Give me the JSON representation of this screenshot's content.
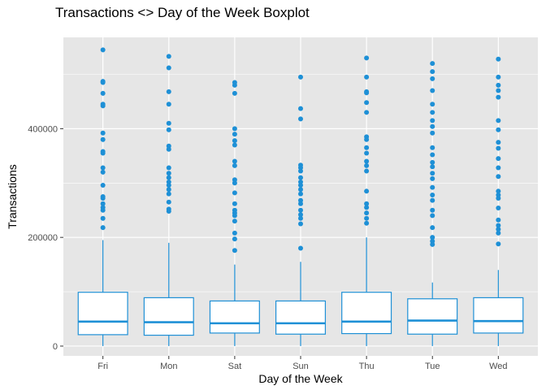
{
  "chart_data": {
    "type": "boxplot",
    "title": "Transactions <> Day of the Week Boxplot",
    "xlabel": "Day of the Week",
    "ylabel": "Transactions",
    "ylim": [
      -18000,
      568000
    ],
    "yticks": [
      0,
      200000,
      400000
    ],
    "ytick_labels": [
      "0",
      "200000",
      "400000"
    ],
    "grid": true,
    "colors": {
      "box": "#1e90d6",
      "panel": "#e6e6e6",
      "grid": "#ffffff",
      "point": "#1e90d6"
    },
    "categories": [
      "Fri",
      "Mon",
      "Sat",
      "Sun",
      "Thu",
      "Tue",
      "Wed"
    ],
    "boxes": [
      {
        "min": 0,
        "q1": 21000,
        "median": 45000,
        "q3": 99000,
        "max": 195000,
        "outliers": [
          545000,
          487000,
          485000,
          465000,
          445000,
          442000,
          392000,
          380000,
          358000,
          355000,
          328000,
          320000,
          296000,
          275000,
          272000,
          262000,
          255000,
          250000,
          235000,
          218000
        ]
      },
      {
        "min": 0,
        "q1": 20000,
        "median": 44000,
        "q3": 89000,
        "max": 190000,
        "outliers": [
          533000,
          512000,
          468000,
          445000,
          410000,
          398000,
          368000,
          362000,
          328000,
          318000,
          310000,
          302000,
          296000,
          288000,
          280000,
          265000,
          252000,
          248000
        ]
      },
      {
        "min": 0,
        "q1": 24000,
        "median": 42000,
        "q3": 83000,
        "max": 150000,
        "outliers": [
          485000,
          480000,
          465000,
          400000,
          390000,
          378000,
          370000,
          340000,
          332000,
          306000,
          300000,
          282000,
          262000,
          250000,
          245000,
          240000,
          230000,
          208000,
          197000,
          176000
        ]
      },
      {
        "min": 0,
        "q1": 22000,
        "median": 42000,
        "q3": 83000,
        "max": 155000,
        "outliers": [
          495000,
          437000,
          418000,
          333000,
          328000,
          322000,
          310000,
          302000,
          296000,
          288000,
          280000,
          268000,
          262000,
          250000,
          242000,
          235000,
          225000,
          180000
        ]
      },
      {
        "min": 0,
        "q1": 23000,
        "median": 45000,
        "q3": 99000,
        "max": 200000,
        "outliers": [
          530000,
          495000,
          468000,
          466000,
          448000,
          430000,
          385000,
          380000,
          365000,
          355000,
          340000,
          332000,
          322000,
          285000,
          262000,
          255000,
          245000,
          235000,
          226000
        ]
      },
      {
        "min": 0,
        "q1": 22000,
        "median": 47000,
        "q3": 87000,
        "max": 117000,
        "outliers": [
          520000,
          505000,
          492000,
          470000,
          445000,
          430000,
          415000,
          404000,
          392000,
          365000,
          352000,
          338000,
          330000,
          318000,
          308000,
          292000,
          278000,
          268000,
          250000,
          240000,
          218000,
          200000,
          193000,
          187000
        ]
      },
      {
        "min": 0,
        "q1": 24000,
        "median": 46000,
        "q3": 89000,
        "max": 140000,
        "outliers": [
          528000,
          495000,
          480000,
          470000,
          458000,
          415000,
          398000,
          375000,
          364000,
          345000,
          328000,
          312000,
          285000,
          278000,
          272000,
          254000,
          232000,
          222000,
          215000,
          208000,
          188000
        ]
      }
    ]
  }
}
